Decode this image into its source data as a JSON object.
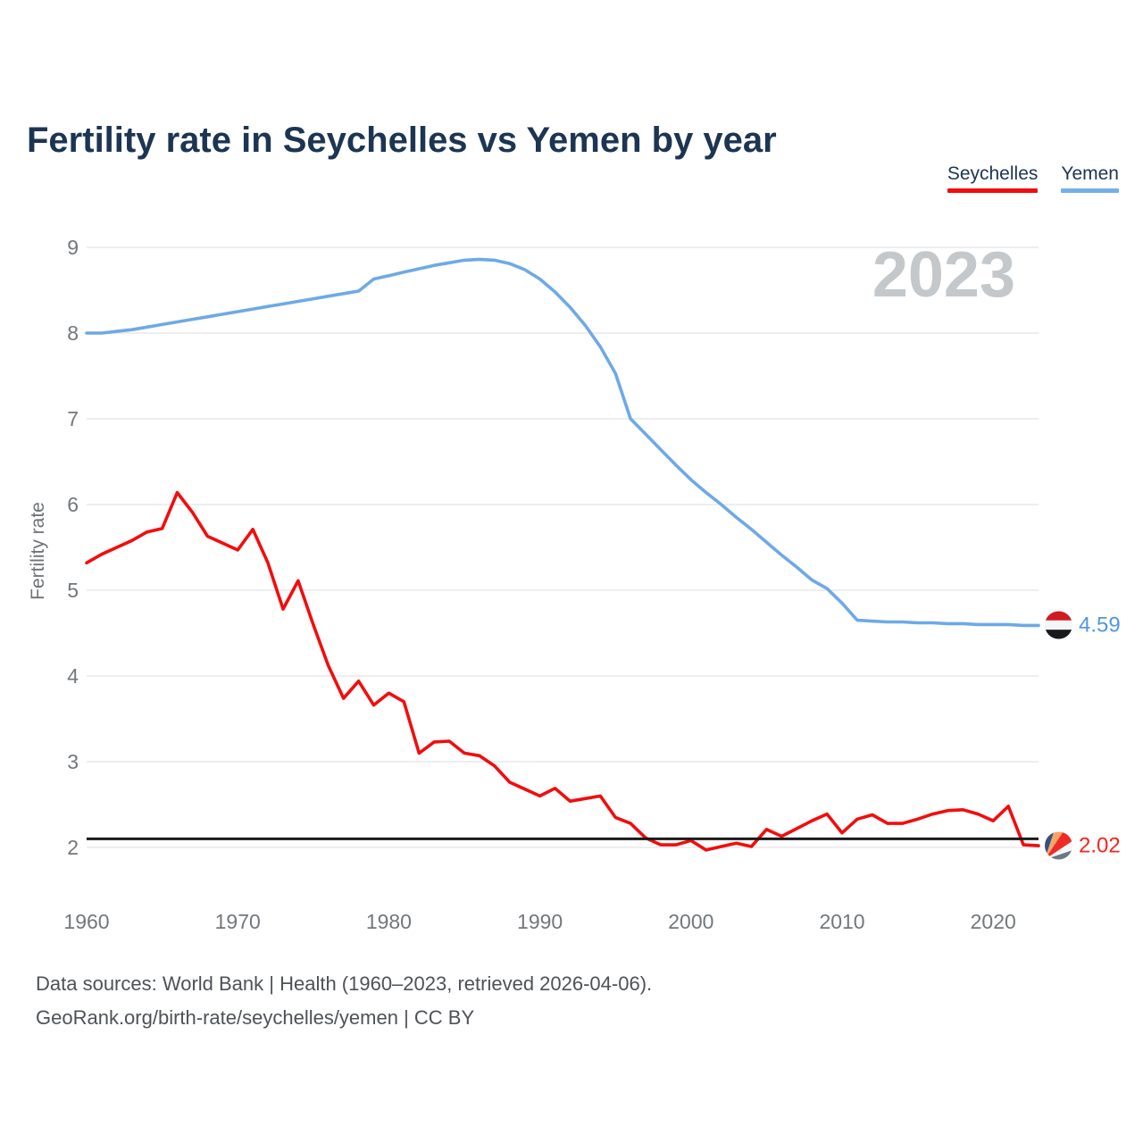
{
  "title": "Fertility rate in Seychelles vs Yemen by year",
  "legend": [
    {
      "label": "Seychelles",
      "color": "#f20d0d"
    },
    {
      "label": "Yemen",
      "color": "#74b0e8"
    }
  ],
  "watermark": "2023",
  "y_axis": {
    "label": "Fertility rate",
    "ticks": [
      2,
      3,
      4,
      5,
      6,
      7,
      8,
      9
    ]
  },
  "x_axis": {
    "ticks": [
      1960,
      1970,
      1980,
      1990,
      2000,
      2010,
      2020
    ]
  },
  "reference_line": {
    "value": 2.1,
    "color": "#1a1a1a"
  },
  "end_labels": [
    {
      "series": "Yemen",
      "value": "4.59",
      "color": "#4f98e0",
      "flag": "yemen-flag"
    },
    {
      "series": "Seychelles",
      "value": "2.02",
      "color": "#f3261c",
      "flag": "seychelles-flag"
    }
  ],
  "footer": {
    "line1": "Data sources: World Bank | Health (1960–2023, retrieved 2026-04-06).",
    "line2": "GeoRank.org/birth-rate/seychelles/yemen | CC BY"
  },
  "chart_data": {
    "type": "line",
    "title": "Fertility rate in Seychelles vs Yemen by year",
    "xlabel": "",
    "ylabel": "Fertility rate",
    "x_start": 1960,
    "x_end": 2023,
    "ylim": [
      2,
      9
    ],
    "grid": "horizontal",
    "legend_position": "top-right",
    "series": [
      {
        "name": "Seychelles",
        "color": "#f20d0d",
        "values": [
          5.32,
          5.42,
          5.5,
          5.58,
          5.68,
          5.72,
          6.14,
          5.91,
          5.63,
          5.55,
          5.47,
          5.71,
          5.32,
          4.78,
          5.11,
          4.6,
          4.12,
          3.74,
          3.94,
          3.66,
          3.8,
          3.7,
          3.1,
          3.23,
          3.24,
          3.1,
          3.07,
          2.95,
          2.76,
          2.68,
          2.6,
          2.69,
          2.54,
          2.57,
          2.6,
          2.35,
          2.28,
          2.11,
          2.03,
          2.03,
          2.08,
          1.97,
          2.01,
          2.05,
          2.01,
          2.21,
          2.13,
          2.22,
          2.31,
          2.39,
          2.17,
          2.33,
          2.38,
          2.28,
          2.28,
          2.33,
          2.39,
          2.43,
          2.44,
          2.39,
          2.31,
          2.48,
          2.03,
          2.02
        ]
      },
      {
        "name": "Yemen",
        "color": "#6ea9e6",
        "values": [
          8.0,
          8.0,
          8.02,
          8.04,
          8.07,
          8.1,
          8.13,
          8.16,
          8.19,
          8.22,
          8.25,
          8.28,
          8.31,
          8.34,
          8.37,
          8.4,
          8.43,
          8.46,
          8.49,
          8.63,
          8.67,
          8.71,
          8.75,
          8.79,
          8.82,
          8.85,
          8.86,
          8.85,
          8.81,
          8.74,
          8.63,
          8.48,
          8.3,
          8.09,
          7.84,
          7.53,
          7.0,
          6.82,
          6.64,
          6.46,
          6.29,
          6.14,
          6.0,
          5.85,
          5.71,
          5.56,
          5.41,
          5.27,
          5.12,
          5.02,
          4.85,
          4.65,
          4.64,
          4.63,
          4.63,
          4.62,
          4.62,
          4.61,
          4.61,
          4.6,
          4.6,
          4.6,
          4.59,
          4.59
        ]
      }
    ]
  }
}
